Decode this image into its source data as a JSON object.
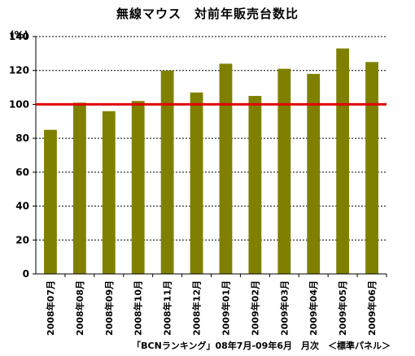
{
  "chart_data": {
    "type": "bar",
    "title": "無線マウス　対前年販売台数比",
    "ylabel": "(%)",
    "xlabel": "",
    "categories": [
      "2008年07月",
      "2008年08月",
      "2008年09月",
      "2008年10月",
      "2008年11月",
      "2008年12月",
      "2009年01月",
      "2009年02月",
      "2009年03月",
      "2009年04月",
      "2009年05月",
      "2009年06月"
    ],
    "series": [
      {
        "values": [
          85,
          101,
          96,
          102,
          120,
          107,
          124,
          105,
          121,
          118,
          133,
          125
        ]
      }
    ],
    "ylim": [
      0,
      140
    ],
    "yticks": [
      0,
      20,
      40,
      60,
      80,
      100,
      120,
      140
    ],
    "grid": true,
    "reference_line": 100,
    "source": "「BCNランキング」08年7月-09年6月　月次　＜標準パネル＞"
  },
  "colors": {
    "bar": "#808000",
    "reference_line": "#e00000",
    "grid": "#000000",
    "axis": "#000000"
  }
}
